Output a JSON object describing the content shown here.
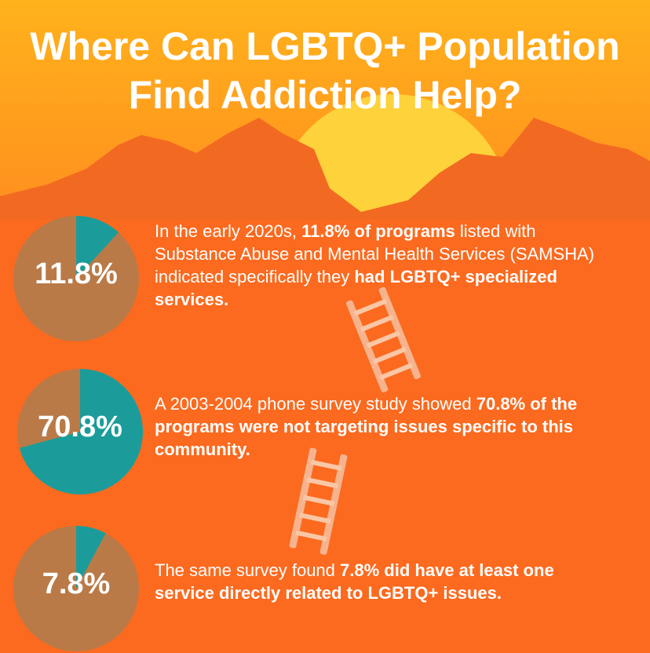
{
  "title_lines": [
    "Where Can LGBTQ+ Population",
    "Find Addiction Help?"
  ],
  "slice_color": "#1b9c9a",
  "rest_color": "#b97a48",
  "items": [
    {
      "value": 11.8,
      "label": "11.8%",
      "text": [
        {
          "text": "In the early 2020s, ",
          "bold": false
        },
        {
          "text": "11.8% of programs",
          "bold": true
        },
        {
          "text": " listed with Substance Abuse and Mental Health Services (SAMSHA) indicated specifically they ",
          "bold": false
        },
        {
          "text": "had LGBTQ+ specialized services.",
          "bold": true
        }
      ]
    },
    {
      "value": 70.8,
      "label": "70.8%",
      "text": [
        {
          "text": "A 2003-2004 phone survey study showed ",
          "bold": false
        },
        {
          "text": "70.8% of the programs were not targeting issues specific to this community.",
          "bold": true
        }
      ]
    },
    {
      "value": 7.8,
      "label": "7.8%",
      "text": [
        {
          "text": "The same survey found ",
          "bold": false
        },
        {
          "text": "7.8% did have at least one service directly related to LGBTQ+ issues.",
          "bold": true
        }
      ]
    }
  ]
}
